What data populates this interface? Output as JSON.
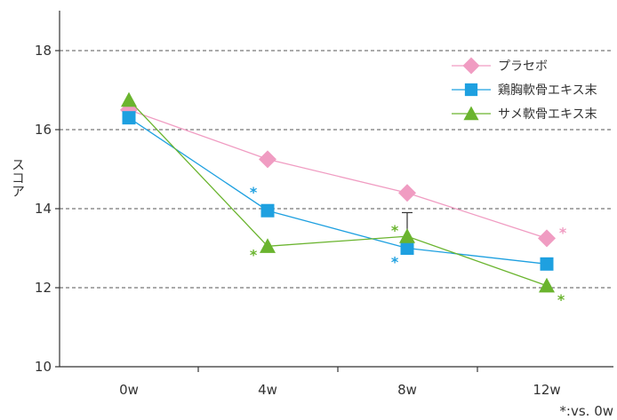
{
  "chart_data": {
    "type": "line",
    "title": "",
    "xlabel": "",
    "ylabel": "スコア",
    "ylim": [
      10,
      19
    ],
    "yticks": [
      10,
      12,
      14,
      16,
      18
    ],
    "categories": [
      "0w",
      "4w",
      "8w",
      "12w"
    ],
    "grid": "horizontal dashed",
    "legend_position": "top-right",
    "series": [
      {
        "name": "プラセボ",
        "marker": "diamond",
        "color": "#f09cc2",
        "values": [
          16.5,
          15.25,
          14.4,
          13.25
        ]
      },
      {
        "name": "鶏胸軟骨エキス末",
        "marker": "square",
        "color": "#1ea0e0",
        "values": [
          16.3,
          13.95,
          13.0,
          12.6
        ]
      },
      {
        "name": "サメ軟骨エキス末",
        "marker": "triangle",
        "color": "#6ab42e",
        "values": [
          16.75,
          13.05,
          13.3,
          12.05
        ]
      }
    ],
    "error_bars": [
      {
        "series": "サメ軟骨エキス末",
        "category": "8w",
        "upper": 13.9
      }
    ],
    "annotations": [
      {
        "text": "*",
        "series": "プラセボ",
        "category": "12w",
        "color": "#f09cc2"
      },
      {
        "text": "*",
        "series": "鶏胸軟骨エキス末",
        "category": "4w",
        "color": "#1ea0e0"
      },
      {
        "text": "*",
        "series": "鶏胸軟骨エキス末",
        "category": "8w",
        "color": "#1ea0e0"
      },
      {
        "text": "*",
        "series": "サメ軟骨エキス末",
        "category": "4w",
        "color": "#6ab42e"
      },
      {
        "text": "*",
        "series": "サメ軟骨エキス末",
        "category": "8w",
        "color": "#6ab42e"
      },
      {
        "text": "*",
        "series": "サメ軟骨エキス末",
        "category": "12w",
        "color": "#6ab42e"
      }
    ],
    "footnote": "*:vs. 0w"
  }
}
